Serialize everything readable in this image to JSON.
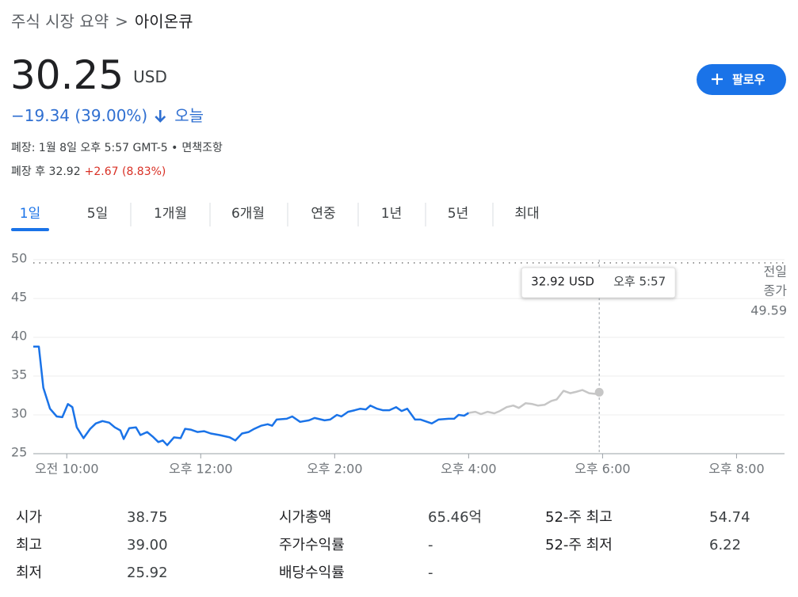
{
  "breadcrumb": {
    "parent": "주식 시장 요약",
    "separator": ">",
    "current": "아이온큐"
  },
  "quote": {
    "price": "30.25",
    "currency": "USD",
    "change": "−19.34 (39.00%)",
    "period": "오늘",
    "status": "폐장: 1월 8일 오후 5:57 GMT-5 •",
    "disclaimer": "면책조항",
    "after_hours_label": "폐장 후 32.92",
    "after_hours_change": "+2.67 (8.83%)"
  },
  "follow_button": "팔로우",
  "tabs": [
    "1일",
    "5일",
    "1개월",
    "6개월",
    "연중",
    "1년",
    "5년",
    "최대"
  ],
  "selected_tab": 0,
  "chart_data": {
    "type": "line",
    "xlim": [
      570,
      1243
    ],
    "ylim": [
      25,
      50
    ],
    "xticks": [
      {
        "value": 600,
        "label": "오전 10:00"
      },
      {
        "value": 720,
        "label": "오후 12:00"
      },
      {
        "value": 840,
        "label": "오후 2:00"
      },
      {
        "value": 960,
        "label": "오후 4:00"
      },
      {
        "value": 1080,
        "label": "오후 6:00"
      },
      {
        "value": 1200,
        "label": "오후 8:00"
      }
    ],
    "yticks": [
      25,
      30,
      35,
      40,
      45,
      50
    ],
    "grid": true,
    "series": [
      {
        "color": "#1a73e8",
        "x": [
          570,
          575,
          579,
          585,
          591,
          596,
          601,
          605,
          609,
          615,
          621,
          626,
          632,
          638,
          643,
          648,
          651,
          656,
          662,
          666,
          672,
          677,
          682,
          686,
          690,
          696,
          702,
          706,
          711,
          717,
          723,
          729,
          737,
          746,
          751,
          757,
          763,
          768,
          774,
          780,
          784,
          788,
          797,
          802,
          809,
          817,
          822,
          831,
          836,
          842,
          846,
          852,
          858,
          863,
          868,
          872,
          878,
          883,
          889,
          895,
          900,
          905,
          912,
          917,
          927,
          933,
          942,
          947,
          951,
          956,
          960
        ],
        "values": [
          38.8,
          38.8,
          33.5,
          30.8,
          29.8,
          29.7,
          31.4,
          31.0,
          28.4,
          27.0,
          28.2,
          28.9,
          29.2,
          29.0,
          28.4,
          28.0,
          26.9,
          28.3,
          28.4,
          27.4,
          27.8,
          27.2,
          26.5,
          26.7,
          26.1,
          27.1,
          27.0,
          28.2,
          28.1,
          27.8,
          27.9,
          27.6,
          27.4,
          27.1,
          26.7,
          27.6,
          27.8,
          28.2,
          28.6,
          28.8,
          28.6,
          29.4,
          29.5,
          29.8,
          29.1,
          29.3,
          29.6,
          29.3,
          29.4,
          30.0,
          29.8,
          30.4,
          30.6,
          30.8,
          30.7,
          31.2,
          30.8,
          30.6,
          30.6,
          31.0,
          30.5,
          30.8,
          29.4,
          29.4,
          28.9,
          29.4,
          29.5,
          29.5,
          30.0,
          29.9,
          30.25
        ]
      },
      {
        "color": "#c6c6c6",
        "x": [
          960,
          966,
          971,
          977,
          983,
          988,
          994,
          1000,
          1005,
          1011,
          1017,
          1022,
          1028,
          1034,
          1039,
          1045,
          1051,
          1057,
          1062,
          1068,
          1074,
          1077
        ],
        "values": [
          30.25,
          30.4,
          30.1,
          30.4,
          30.2,
          30.5,
          31.0,
          31.2,
          30.9,
          31.5,
          31.4,
          31.2,
          31.3,
          31.8,
          32.0,
          33.1,
          32.8,
          33.0,
          33.2,
          32.8,
          32.7,
          32.92
        ]
      }
    ],
    "previous_close": {
      "label": [
        "전일",
        "종가"
      ],
      "value": 49.59
    },
    "tooltip": {
      "price": "32.92 USD",
      "time": "오후 5:57"
    }
  },
  "stats": [
    [
      [
        "시가",
        "38.75"
      ],
      [
        "시가총액",
        "65.46억"
      ],
      [
        "52-주 최고",
        "54.74"
      ]
    ],
    [
      [
        "최고",
        "39.00"
      ],
      [
        "주가수익률",
        "-"
      ],
      [
        "52-주 최저",
        "6.22"
      ]
    ],
    [
      [
        "최저",
        "25.92"
      ],
      [
        "배당수익률",
        "-"
      ]
    ]
  ]
}
